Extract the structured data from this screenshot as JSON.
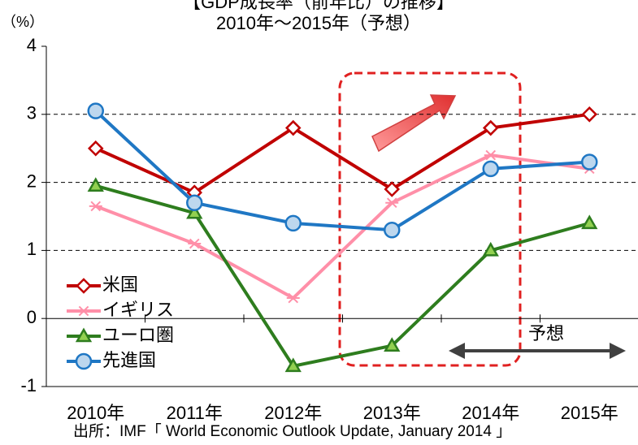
{
  "chart_data": {
    "type": "line",
    "title": "【GDP成長率（前年比）の推移】",
    "subtitle": "2010年～2015年（予想）",
    "y_label": "（%）",
    "categories": [
      "2010年",
      "2011年",
      "2012年",
      "2013年",
      "2014年",
      "2015年"
    ],
    "series": [
      {
        "name": "米国",
        "color": "#c00000",
        "marker": "diamond",
        "marker_fill": "#ffffff",
        "values": [
          2.5,
          1.85,
          2.8,
          1.9,
          2.8,
          3.0
        ]
      },
      {
        "name": "イギリス",
        "color": "#ff8fa8",
        "marker": "star",
        "marker_fill": "#ff8fa8",
        "values": [
          1.65,
          1.1,
          0.3,
          1.7,
          2.4,
          2.2
        ]
      },
      {
        "name": "ユーロ圏",
        "color": "#2e7d1e",
        "marker": "triangle",
        "marker_fill": "#92d050",
        "values": [
          1.95,
          1.55,
          -0.7,
          -0.4,
          1.0,
          1.4
        ]
      },
      {
        "name": "先進国",
        "color": "#1f77c4",
        "marker": "circle",
        "marker_fill": "#bdd7ee",
        "values": [
          3.05,
          1.7,
          1.4,
          1.3,
          2.2,
          2.3
        ]
      }
    ],
    "ylim": [
      -1,
      4
    ],
    "yticks": [
      -1,
      0,
      1,
      2,
      3,
      4
    ],
    "grid": true,
    "legend": "lower left",
    "annotations": [
      "予想"
    ],
    "source": "出所：IMF「 World Economic Outlook Update, January 2014 」"
  }
}
